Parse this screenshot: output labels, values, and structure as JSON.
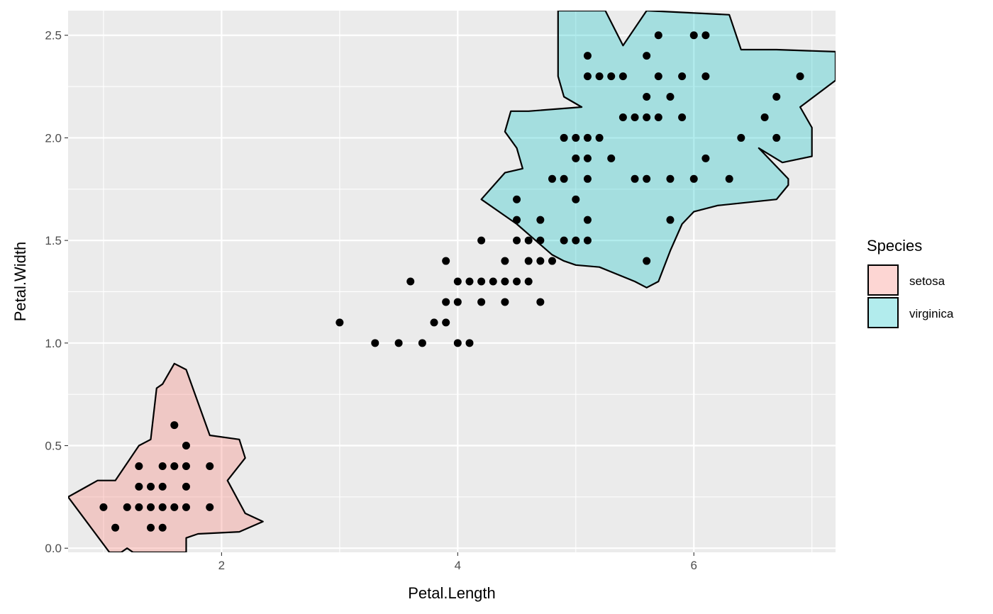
{
  "chart_data": {
    "type": "scatter",
    "xlabel": "Petal.Length",
    "ylabel": "Petal.Width",
    "xlim": [
      0.7,
      7.2
    ],
    "ylim": [
      -0.02,
      2.62
    ],
    "x_ticks": [
      2,
      4,
      6
    ],
    "x_tick_labels": [
      "2",
      "4",
      "6"
    ],
    "y_ticks": [
      0,
      0.5,
      1,
      1.5,
      2,
      2.5
    ],
    "y_tick_labels": [
      "0.0",
      "0.5",
      "1.0",
      "1.5",
      "2.0",
      "2.5"
    ],
    "grid": true,
    "legend": {
      "title": "Species",
      "placement": "right",
      "entries": [
        {
          "label": "setosa",
          "fill": "#F8766D"
        },
        {
          "label": "virginica",
          "fill": "#00BFC4"
        }
      ]
    },
    "points": [
      [
        1.0,
        0.2
      ],
      [
        1.1,
        0.1
      ],
      [
        1.2,
        0.2
      ],
      [
        1.3,
        0.2
      ],
      [
        1.3,
        0.3
      ],
      [
        1.3,
        0.4
      ],
      [
        1.4,
        0.1
      ],
      [
        1.4,
        0.2
      ],
      [
        1.4,
        0.3
      ],
      [
        1.5,
        0.1
      ],
      [
        1.5,
        0.2
      ],
      [
        1.5,
        0.3
      ],
      [
        1.5,
        0.4
      ],
      [
        1.6,
        0.2
      ],
      [
        1.6,
        0.4
      ],
      [
        1.6,
        0.6
      ],
      [
        1.7,
        0.2
      ],
      [
        1.7,
        0.3
      ],
      [
        1.7,
        0.4
      ],
      [
        1.7,
        0.5
      ],
      [
        1.9,
        0.2
      ],
      [
        1.9,
        0.4
      ],
      [
        3.0,
        1.1
      ],
      [
        3.3,
        1.0
      ],
      [
        3.5,
        1.0
      ],
      [
        3.6,
        1.3
      ],
      [
        3.7,
        1.0
      ],
      [
        3.8,
        1.1
      ],
      [
        3.9,
        1.1
      ],
      [
        3.9,
        1.2
      ],
      [
        3.9,
        1.4
      ],
      [
        4.0,
        1.0
      ],
      [
        4.0,
        1.2
      ],
      [
        4.0,
        1.3
      ],
      [
        4.1,
        1.0
      ],
      [
        4.1,
        1.3
      ],
      [
        4.2,
        1.2
      ],
      [
        4.2,
        1.3
      ],
      [
        4.2,
        1.5
      ],
      [
        4.3,
        1.3
      ],
      [
        4.4,
        1.2
      ],
      [
        4.4,
        1.3
      ],
      [
        4.4,
        1.4
      ],
      [
        4.5,
        1.3
      ],
      [
        4.5,
        1.5
      ],
      [
        4.5,
        1.6
      ],
      [
        4.5,
        1.7
      ],
      [
        4.6,
        1.3
      ],
      [
        4.6,
        1.4
      ],
      [
        4.6,
        1.5
      ],
      [
        4.7,
        1.2
      ],
      [
        4.7,
        1.4
      ],
      [
        4.7,
        1.5
      ],
      [
        4.7,
        1.6
      ],
      [
        4.8,
        1.4
      ],
      [
        4.8,
        1.8
      ],
      [
        4.9,
        1.5
      ],
      [
        4.9,
        1.8
      ],
      [
        4.9,
        2.0
      ],
      [
        5.0,
        1.5
      ],
      [
        5.0,
        1.7
      ],
      [
        5.0,
        1.9
      ],
      [
        5.0,
        2.0
      ],
      [
        5.1,
        1.5
      ],
      [
        5.1,
        1.6
      ],
      [
        5.1,
        1.8
      ],
      [
        5.1,
        1.9
      ],
      [
        5.1,
        2.0
      ],
      [
        5.1,
        2.3
      ],
      [
        5.1,
        2.4
      ],
      [
        5.2,
        2.0
      ],
      [
        5.2,
        2.3
      ],
      [
        5.3,
        1.9
      ],
      [
        5.3,
        2.3
      ],
      [
        5.4,
        2.1
      ],
      [
        5.4,
        2.3
      ],
      [
        5.5,
        1.8
      ],
      [
        5.5,
        2.1
      ],
      [
        5.6,
        1.4
      ],
      [
        5.6,
        1.8
      ],
      [
        5.6,
        2.1
      ],
      [
        5.6,
        2.2
      ],
      [
        5.6,
        2.4
      ],
      [
        5.7,
        2.1
      ],
      [
        5.7,
        2.3
      ],
      [
        5.7,
        2.5
      ],
      [
        5.8,
        1.6
      ],
      [
        5.8,
        1.8
      ],
      [
        5.8,
        2.2
      ],
      [
        5.9,
        2.1
      ],
      [
        5.9,
        2.3
      ],
      [
        6.0,
        1.8
      ],
      [
        6.0,
        2.5
      ],
      [
        6.1,
        1.9
      ],
      [
        6.1,
        2.3
      ],
      [
        6.1,
        2.5
      ],
      [
        6.3,
        1.8
      ],
      [
        6.4,
        2.0
      ],
      [
        6.6,
        2.1
      ],
      [
        6.7,
        2.0
      ],
      [
        6.7,
        2.2
      ],
      [
        6.9,
        2.3
      ]
    ],
    "regions": [
      {
        "label": "setosa",
        "fill": "#F8766D",
        "outline": [
          [
            0.7,
            0.25
          ],
          [
            0.95,
            0.33
          ],
          [
            1.1,
            0.33
          ],
          [
            1.3,
            0.5
          ],
          [
            1.4,
            0.53
          ],
          [
            1.45,
            0.78
          ],
          [
            1.5,
            0.8
          ],
          [
            1.6,
            0.9
          ],
          [
            1.7,
            0.87
          ],
          [
            1.9,
            0.55
          ],
          [
            2.15,
            0.53
          ],
          [
            2.2,
            0.44
          ],
          [
            2.05,
            0.33
          ],
          [
            2.2,
            0.17
          ],
          [
            2.35,
            0.13
          ],
          [
            2.15,
            0.08
          ],
          [
            1.8,
            0.07
          ],
          [
            1.7,
            0.05
          ],
          [
            1.7,
            -0.02
          ],
          [
            1.25,
            -0.02
          ],
          [
            1.2,
            0.0
          ],
          [
            1.15,
            -0.02
          ],
          [
            1.05,
            -0.02
          ],
          [
            0.7,
            0.25
          ]
        ]
      },
      {
        "label": "virginica",
        "fill": "#00BFC4",
        "outline": [
          [
            4.2,
            1.7
          ],
          [
            4.4,
            1.62
          ],
          [
            4.5,
            1.58
          ],
          [
            4.6,
            1.53
          ],
          [
            4.7,
            1.48
          ],
          [
            4.8,
            1.43
          ],
          [
            4.9,
            1.4
          ],
          [
            5.0,
            1.38
          ],
          [
            5.2,
            1.37
          ],
          [
            5.5,
            1.3
          ],
          [
            5.6,
            1.27
          ],
          [
            5.7,
            1.3
          ],
          [
            5.8,
            1.45
          ],
          [
            5.9,
            1.58
          ],
          [
            6.0,
            1.64
          ],
          [
            6.2,
            1.67
          ],
          [
            6.7,
            1.7
          ],
          [
            6.8,
            1.77
          ],
          [
            6.8,
            1.8
          ],
          [
            6.55,
            1.95
          ],
          [
            6.75,
            1.88
          ],
          [
            7.0,
            1.91
          ],
          [
            7.0,
            2.05
          ],
          [
            6.9,
            2.15
          ],
          [
            7.2,
            2.28
          ],
          [
            7.2,
            2.42
          ],
          [
            6.7,
            2.43
          ],
          [
            6.4,
            2.43
          ],
          [
            6.3,
            2.6
          ],
          [
            5.6,
            2.62
          ],
          [
            5.4,
            2.45
          ],
          [
            5.25,
            2.62
          ],
          [
            4.85,
            2.62
          ],
          [
            4.85,
            2.3
          ],
          [
            4.9,
            2.2
          ],
          [
            5.05,
            2.15
          ],
          [
            4.6,
            2.13
          ],
          [
            4.45,
            2.13
          ],
          [
            4.4,
            2.03
          ],
          [
            4.5,
            1.95
          ],
          [
            4.55,
            1.85
          ],
          [
            4.4,
            1.83
          ],
          [
            4.2,
            1.7
          ]
        ]
      }
    ]
  }
}
